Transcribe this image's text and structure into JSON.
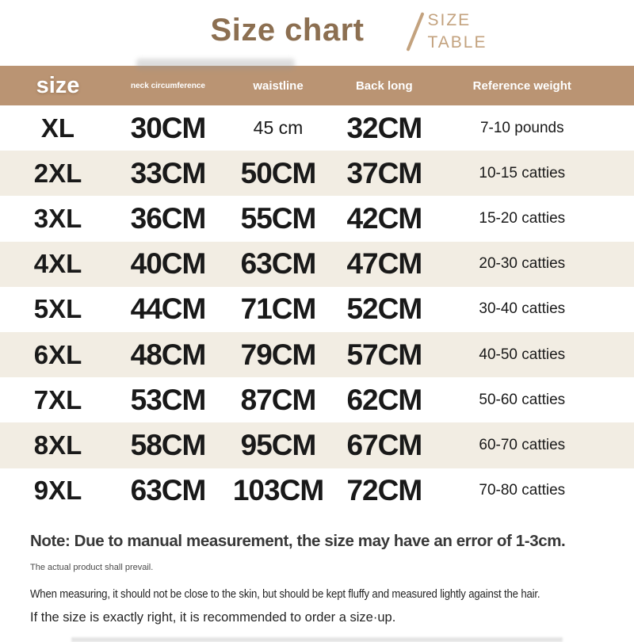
{
  "title": {
    "main": "Size chart",
    "divider": "/",
    "sub_line1": "SIZE",
    "sub_line2": "TABLE"
  },
  "colors": {
    "header_bar": "#ba9473",
    "row_stripe": "#f2ede3",
    "title_brown": "#8c6f51",
    "subtitle_tan": "#c3a27e",
    "text_dark": "#191919"
  },
  "table": {
    "headers": [
      {
        "id": "size",
        "label": "size"
      },
      {
        "id": "neck",
        "label": "neck circumference"
      },
      {
        "id": "waist",
        "label": "waistline"
      },
      {
        "id": "back",
        "label": "Back long"
      },
      {
        "id": "weight",
        "label": "Reference weight"
      }
    ],
    "rows": [
      {
        "size": "XL",
        "neck": "30CM",
        "waist": "45 cm",
        "back": "32CM",
        "weight": "7-10 pounds",
        "waist_small": true
      },
      {
        "size": "2XL",
        "neck": "33CM",
        "waist": "50CM",
        "back": "37CM",
        "weight": "10-15 catties",
        "waist_small": false
      },
      {
        "size": "3XL",
        "neck": "36CM",
        "waist": "55CM",
        "back": "42CM",
        "weight": "15-20 catties",
        "waist_small": false
      },
      {
        "size": "4XL",
        "neck": "40CM",
        "waist": "63CM",
        "back": "47CM",
        "weight": "20-30 catties",
        "waist_small": false
      },
      {
        "size": "5XL",
        "neck": "44CM",
        "waist": "71CM",
        "back": "52CM",
        "weight": "30-40 catties",
        "waist_small": false
      },
      {
        "size": "6XL",
        "neck": "48CM",
        "waist": "79CM",
        "back": "57CM",
        "weight": "40-50 catties",
        "waist_small": false
      },
      {
        "size": "7XL",
        "neck": "53CM",
        "waist": "87CM",
        "back": "62CM",
        "weight": "50-60 catties",
        "waist_small": false
      },
      {
        "size": "8XL",
        "neck": "58CM",
        "waist": "95CM",
        "back": "67CM",
        "weight": "60-70 catties",
        "waist_small": false
      },
      {
        "size": "9XL",
        "neck": "63CM",
        "waist": "103CM",
        "back": "72CM",
        "weight": "70-80 catties",
        "waist_small": false
      }
    ]
  },
  "notes": {
    "main": "Note: Due to manual measurement, the size may have an error of 1-3cm.",
    "small": "The actual product shall prevail.",
    "line2": "When measuring, it should not be close to the skin, but should be kept fluffy and measured lightly against the hair.",
    "line3": "If the size is exactly right, it is recommended to order a size·up."
  },
  "chart_data": {
    "type": "table",
    "title": "Size chart",
    "columns": [
      "size",
      "neck circumference",
      "waistline",
      "Back long",
      "Reference weight"
    ],
    "rows": [
      [
        "XL",
        "30CM",
        "45 cm",
        "32CM",
        "7-10 pounds"
      ],
      [
        "2XL",
        "33CM",
        "50CM",
        "37CM",
        "10-15 catties"
      ],
      [
        "3XL",
        "36CM",
        "55CM",
        "42CM",
        "15-20 catties"
      ],
      [
        "4XL",
        "40CM",
        "63CM",
        "47CM",
        "20-30 catties"
      ],
      [
        "5XL",
        "44CM",
        "71CM",
        "52CM",
        "30-40 catties"
      ],
      [
        "6XL",
        "48CM",
        "79CM",
        "57CM",
        "40-50 catties"
      ],
      [
        "7XL",
        "53CM",
        "87CM",
        "62CM",
        "50-60 catties"
      ],
      [
        "8XL",
        "58CM",
        "95CM",
        "67CM",
        "60-70 catties"
      ],
      [
        "9XL",
        "63CM",
        "103CM",
        "72CM",
        "70-80 catties"
      ]
    ]
  }
}
